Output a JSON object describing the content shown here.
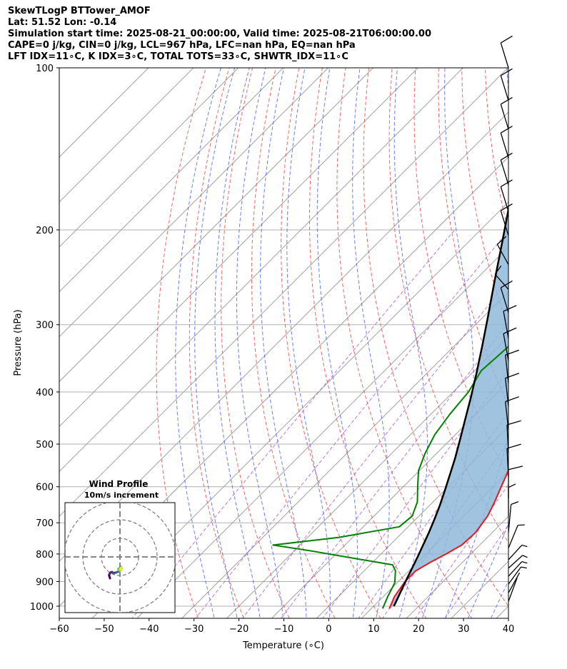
{
  "header": {
    "title": "SkewTLogP BTTower_AMOF",
    "location": "Lat: 51.52   Lon: -0.14",
    "times": "Simulation start time: 2025-08-21_00:00:00, Valid time: 2025-08-21T06:00:00.00",
    "indices1": "CAPE=0 j/kg, CIN=0 j/kg, LCL=967 hPa, LFC=nan hPa, EQ=nan hPa",
    "indices2": "LFT IDX=11∘C, K IDX=3∘C, TOTAL TOTS=33∘C, SHWTR_IDX=11∘C"
  },
  "chart_data": {
    "type": "line",
    "xlabel": "Temperature (∘C)",
    "ylabel": "Pressure (hPa)",
    "xlim": [
      -60,
      40
    ],
    "ylim": [
      1050,
      100
    ],
    "yscale": "log",
    "skew": true,
    "grid": true,
    "xticks": [
      -60,
      -50,
      -40,
      -30,
      -20,
      -10,
      0,
      10,
      20,
      30,
      40
    ],
    "yticks": [
      100,
      200,
      300,
      400,
      500,
      600,
      700,
      800,
      900,
      1000
    ],
    "series": [
      {
        "color": "#e41a1c",
        "points": [
          [
            14,
            1010
          ],
          [
            12.5,
            960
          ],
          [
            11.5,
            900
          ],
          [
            11.5,
            860
          ],
          [
            12.8,
            830
          ],
          [
            14.5,
            800
          ],
          [
            16,
            770
          ],
          [
            16.3,
            730
          ],
          [
            15.3,
            680
          ],
          [
            13.7,
            640
          ],
          [
            11.8,
            600
          ],
          [
            9.8,
            560
          ],
          [
            7.6,
            520
          ],
          [
            5.3,
            480
          ],
          [
            2.8,
            440
          ],
          [
            0.2,
            400
          ],
          [
            -2.7,
            360
          ],
          [
            -4.8,
            330
          ],
          [
            -6.2,
            305
          ],
          [
            -8.5,
            290
          ],
          [
            -10.5,
            270
          ],
          [
            -12.8,
            245
          ],
          [
            -15.2,
            225
          ],
          [
            -16.8,
            210
          ],
          [
            -17.8,
            200
          ],
          [
            -17.5,
            190
          ],
          [
            -16.2,
            180
          ],
          [
            -13.8,
            168
          ],
          [
            -10.3,
            158
          ],
          [
            -6,
            150
          ],
          [
            -2,
            143
          ],
          [
            0.5,
            137
          ],
          [
            1.8,
            130
          ],
          [
            3.2,
            120
          ],
          [
            5.5,
            110
          ],
          [
            7,
            100
          ]
        ]
      },
      {
        "color": "#008000",
        "points": [
          [
            12.5,
            1010
          ],
          [
            11,
            960
          ],
          [
            9.5,
            905
          ],
          [
            7,
            860
          ],
          [
            5,
            838
          ],
          [
            -5,
            815
          ],
          [
            -16,
            790
          ],
          [
            -26,
            770
          ],
          [
            -13,
            745
          ],
          [
            -2,
            712
          ],
          [
            -1.5,
            680
          ],
          [
            -3.5,
            640
          ],
          [
            -6.8,
            600
          ],
          [
            -10.2,
            560
          ],
          [
            -12.6,
            520
          ],
          [
            -14.6,
            480
          ],
          [
            -15.8,
            440
          ],
          [
            -16.6,
            400
          ],
          [
            -18.5,
            365
          ],
          [
            -18,
            340
          ],
          [
            -17.5,
            310
          ],
          [
            -21.5,
            290
          ],
          [
            -25,
            270
          ],
          [
            -29,
            250
          ],
          [
            -27,
            235
          ],
          [
            -28,
            212
          ],
          [
            -27.5,
            200
          ],
          [
            -27.5,
            186
          ],
          [
            -27.5,
            173
          ],
          [
            -30,
            158
          ],
          [
            -37,
            143
          ],
          [
            -34,
            131
          ],
          [
            -30,
            120
          ],
          [
            -26,
            110
          ],
          [
            -23,
            100
          ]
        ]
      },
      {
        "color": "#000000",
        "points": [
          [
            14.5,
            1000
          ],
          [
            13.6,
            967
          ],
          [
            12.5,
            930
          ],
          [
            11.3,
            890
          ],
          [
            10.1,
            850
          ],
          [
            8.8,
            810
          ],
          [
            7.4,
            770
          ],
          [
            5.9,
            730
          ],
          [
            4.2,
            690
          ],
          [
            2.3,
            650
          ],
          [
            0.1,
            610
          ],
          [
            -2.3,
            570
          ],
          [
            -4.9,
            530
          ],
          [
            -7.9,
            490
          ],
          [
            -11.2,
            450
          ],
          [
            -14.8,
            410
          ],
          [
            -18.9,
            370
          ],
          [
            -23.6,
            330
          ],
          [
            -29,
            290
          ],
          [
            -35.3,
            250
          ],
          [
            -42.6,
            210
          ],
          [
            -51.5,
            170
          ],
          [
            -58.5,
            145
          ],
          [
            -63,
            130
          ],
          [
            -72,
            100
          ]
        ]
      }
    ],
    "wind_barbs": [
      {
        "p": 100,
        "u": 5,
        "v": 9
      },
      {
        "p": 115,
        "u": 5,
        "v": 9
      },
      {
        "p": 130,
        "u": 5,
        "v": 9
      },
      {
        "p": 147,
        "u": 5,
        "v": 9
      },
      {
        "p": 165,
        "u": 5,
        "v": 9
      },
      {
        "p": 185,
        "u": 5,
        "v": 9
      },
      {
        "p": 205,
        "u": 5,
        "v": 9
      },
      {
        "p": 232,
        "u": 8,
        "v": 8
      },
      {
        "p": 258,
        "u": 8,
        "v": 5
      },
      {
        "p": 285,
        "u": 5,
        "v": 9
      },
      {
        "p": 318,
        "u": 3,
        "v": 9
      },
      {
        "p": 350,
        "u": 3,
        "v": 9
      },
      {
        "p": 385,
        "u": 2,
        "v": 10
      },
      {
        "p": 425,
        "u": 2,
        "v": 10
      },
      {
        "p": 470,
        "u": 2,
        "v": 10
      },
      {
        "p": 520,
        "u": 1,
        "v": 11
      },
      {
        "p": 575,
        "u": 1,
        "v": 11
      },
      {
        "p": 630,
        "u": 0,
        "v": 10
      },
      {
        "p": 680,
        "u": 0,
        "v": 8
      },
      {
        "p": 730,
        "u": -1,
        "v": 6
      },
      {
        "p": 780,
        "u": -3,
        "v": 4
      },
      {
        "p": 820,
        "u": -5,
        "v": 3
      },
      {
        "p": 850,
        "u": -6,
        "v": 3
      },
      {
        "p": 880,
        "u": -5,
        "v": 3
      },
      {
        "p": 910,
        "u": -4,
        "v": 3
      },
      {
        "p": 945,
        "u": -3,
        "v": 3
      },
      {
        "p": 980,
        "u": -2,
        "v": 3
      }
    ],
    "hodograph": {
      "title": "Wind Profile",
      "subtitle": "10m/s increment",
      "colormap": "viridis",
      "points": [
        [
          -1.5,
          -2.5
        ],
        [
          -1.8,
          -1.5
        ],
        [
          -1.6,
          -0.8
        ],
        [
          -1.2,
          -0.4
        ],
        [
          -0.8,
          -0.3
        ],
        [
          -0.4,
          -0.5
        ],
        [
          0,
          -0.6
        ],
        [
          0.5,
          -0.5
        ],
        [
          1.0,
          -0.3
        ],
        [
          1.4,
          -0.2
        ],
        [
          1.7,
          0.1
        ],
        [
          2.1,
          0.4
        ],
        [
          2.2,
          0.8
        ],
        [
          2.5,
          1.2
        ],
        [
          2.4,
          1.5
        ],
        [
          2.2,
          1.2
        ],
        [
          2.0,
          0.8
        ],
        [
          1.8,
          0.9
        ],
        [
          1.6,
          1.0
        ],
        [
          1.4,
          0.7
        ],
        [
          1.6,
          0.4
        ],
        [
          2.0,
          0.2
        ],
        [
          2.3,
          0.5
        ],
        [
          2.6,
          0.9
        ],
        [
          2.5,
          1.3
        ],
        [
          2.3,
          1.1
        ],
        [
          2.1,
          0.6
        ]
      ]
    }
  }
}
